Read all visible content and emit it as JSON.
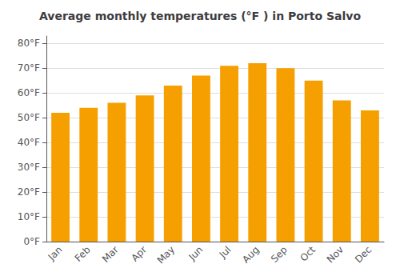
{
  "chart_data": {
    "type": "bar",
    "title": "Average monthly temperatures (°F ) in Porto Salvo",
    "categories": [
      "Jan",
      "Feb",
      "Mar",
      "Apr",
      "May",
      "Jun",
      "Jul",
      "Aug",
      "Sep",
      "Oct",
      "Nov",
      "Dec"
    ],
    "values": [
      52,
      54,
      56,
      59,
      63,
      67,
      71,
      72,
      70,
      65,
      57,
      53
    ],
    "color": "#F5A000",
    "ylim": [
      0,
      83
    ],
    "yticks": [
      {
        "value": 0,
        "label": "0°F"
      },
      {
        "value": 10,
        "label": "10°F"
      },
      {
        "value": 20,
        "label": "20°F"
      },
      {
        "value": 30,
        "label": "30°F"
      },
      {
        "value": 40,
        "label": "40°F"
      },
      {
        "value": 50,
        "label": "50°F"
      },
      {
        "value": 60,
        "label": "60°F"
      },
      {
        "value": 70,
        "label": "70°F"
      },
      {
        "value": 80,
        "label": "80°F"
      }
    ],
    "grid": true
  }
}
